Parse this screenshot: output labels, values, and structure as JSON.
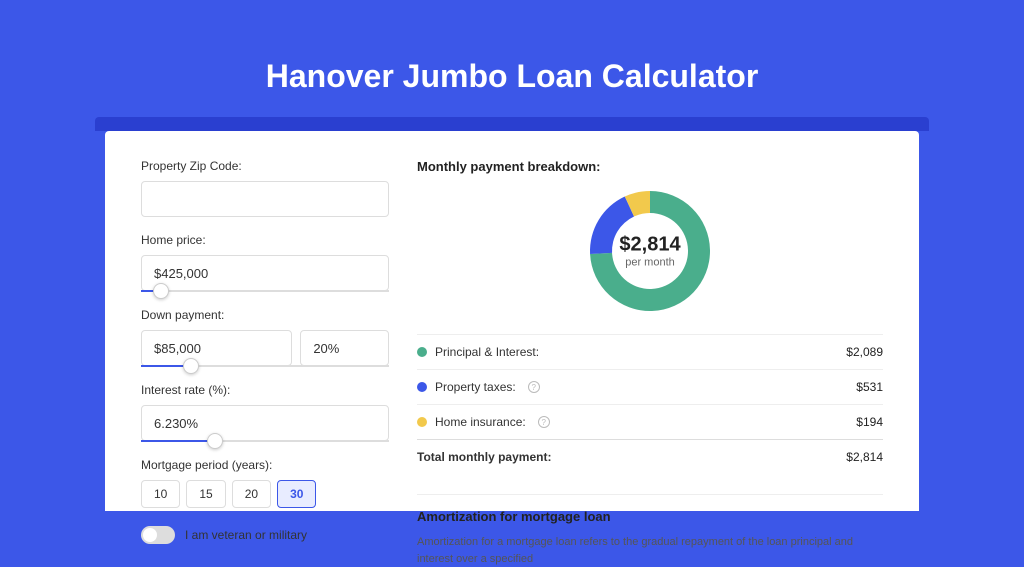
{
  "page": {
    "title": "Hanover Jumbo Loan Calculator",
    "background_color": "#3c57e8",
    "shadow_card_color": "#2a3fd0",
    "card_background": "#ffffff"
  },
  "form": {
    "zip_code": {
      "label": "Property Zip Code:",
      "value": ""
    },
    "home_price": {
      "label": "Home price:",
      "value": "$425,000",
      "slider_pct": 8
    },
    "down_payment": {
      "label": "Down payment:",
      "value": "$85,000",
      "percent_value": "20%",
      "slider_pct": 20
    },
    "interest_rate": {
      "label": "Interest rate (%):",
      "value": "6.230%",
      "slider_pct": 30
    },
    "mortgage_period": {
      "label": "Mortgage period (years):",
      "options": [
        "10",
        "15",
        "20",
        "30"
      ],
      "selected_index": 3
    },
    "veteran": {
      "label": "I am veteran or military",
      "checked": false
    }
  },
  "breakdown": {
    "title": "Monthly payment breakdown:",
    "donut": {
      "center_amount": "$2,814",
      "center_sub": "per month",
      "slices": [
        {
          "color": "#4aae8c",
          "value": 2089,
          "pct": 74.2
        },
        {
          "color": "#3c57e8",
          "value": 531,
          "pct": 18.9
        },
        {
          "color": "#f2c94c",
          "value": 194,
          "pct": 6.9
        }
      ],
      "inner_radius": 38,
      "outer_radius": 60
    },
    "items": [
      {
        "label": "Principal & Interest:",
        "value": "$2,089",
        "color": "#4aae8c",
        "has_info": false
      },
      {
        "label": "Property taxes:",
        "value": "$531",
        "color": "#3c57e8",
        "has_info": true
      },
      {
        "label": "Home insurance:",
        "value": "$194",
        "color": "#f2c94c",
        "has_info": true
      }
    ],
    "total": {
      "label": "Total monthly payment:",
      "value": "$2,814"
    }
  },
  "amortization": {
    "title": "Amortization for mortgage loan",
    "body": "Amortization for a mortgage loan refers to the gradual repayment of the loan principal and interest over a specified"
  }
}
